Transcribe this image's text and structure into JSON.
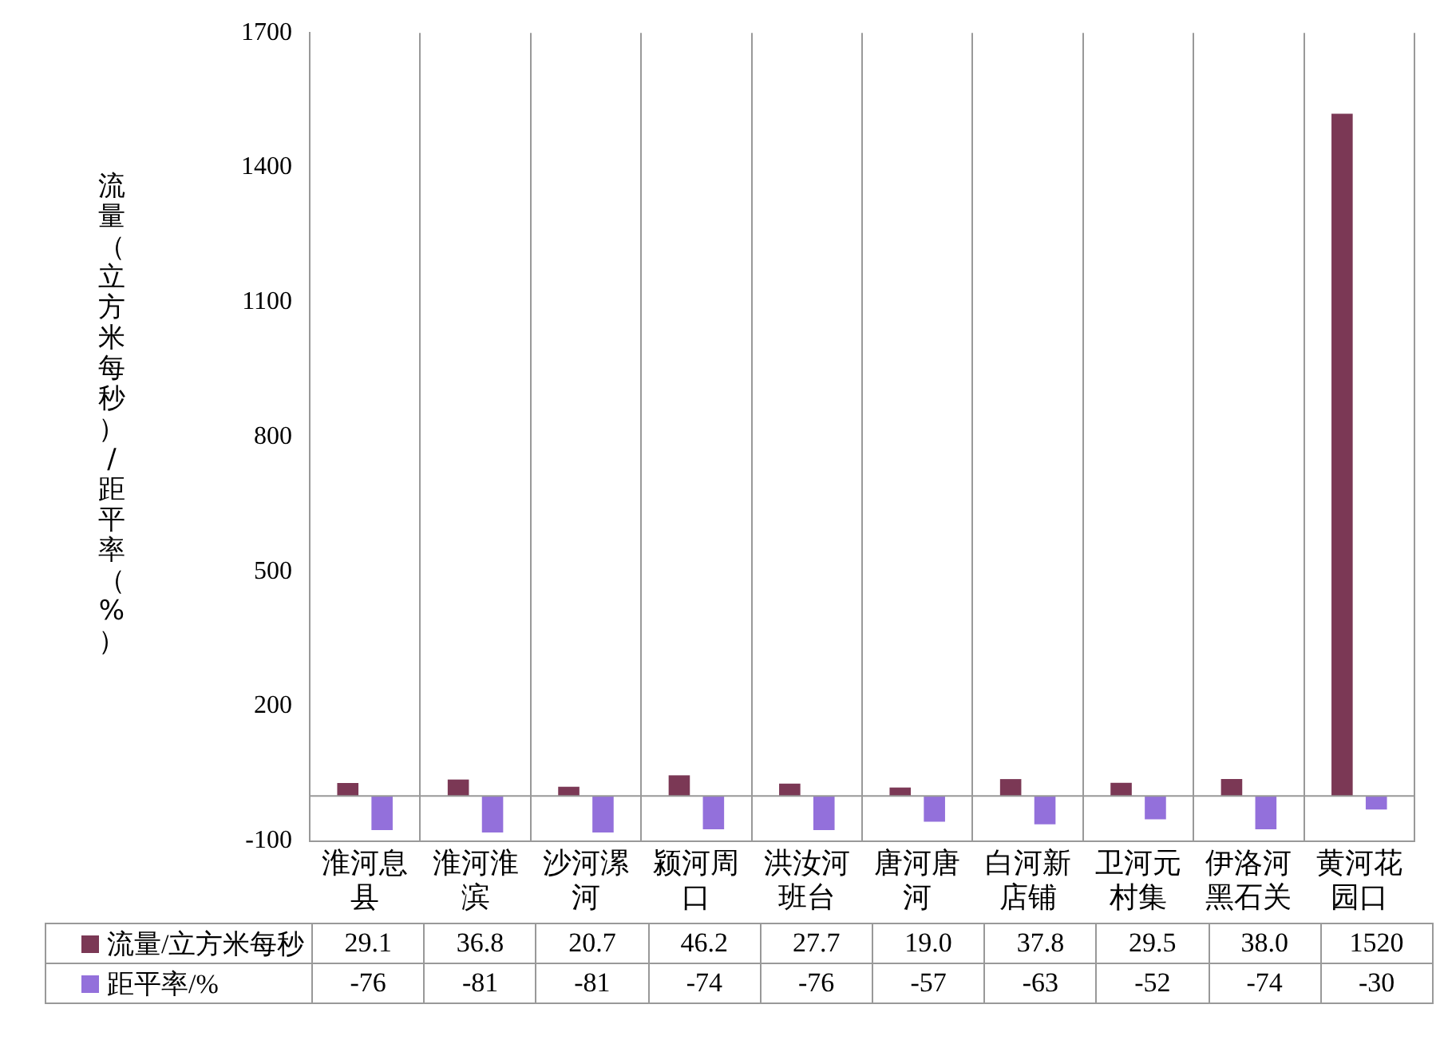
{
  "chart_data": {
    "type": "bar",
    "ylabel": "流量（立方米每秒）/距平率（%）",
    "categories": [
      "淮河息县",
      "淮河淮滨",
      "沙河漯河",
      "颍河周口",
      "洪汝河班台",
      "唐河唐河",
      "白河新店铺",
      "卫河元村集",
      "伊洛河黑石关",
      "黄河花园口"
    ],
    "series": [
      {
        "name": "流量/立方米每秒",
        "color": "#7b3855",
        "values": [
          29.1,
          36.8,
          20.7,
          46.2,
          27.7,
          19.0,
          37.8,
          29.5,
          38.0,
          1520
        ],
        "value_labels": [
          "29.1",
          "36.8",
          "20.7",
          "46.2",
          "27.7",
          "19.0",
          "37.8",
          "29.5",
          "38.0",
          "1520"
        ]
      },
      {
        "name": "距平率/%",
        "color": "#9370db",
        "values": [
          -76,
          -81,
          -81,
          -74,
          -76,
          -57,
          -63,
          -52,
          -74,
          -30
        ],
        "value_labels": [
          "-76",
          "-81",
          "-81",
          "-74",
          "-76",
          "-57",
          "-63",
          "-52",
          "-74",
          "-30"
        ]
      }
    ],
    "ylim": [
      -100,
      1700
    ],
    "yticks": [
      -100,
      200,
      500,
      800,
      1100,
      1400,
      1700
    ],
    "grid": "x",
    "legend": "bottom"
  }
}
